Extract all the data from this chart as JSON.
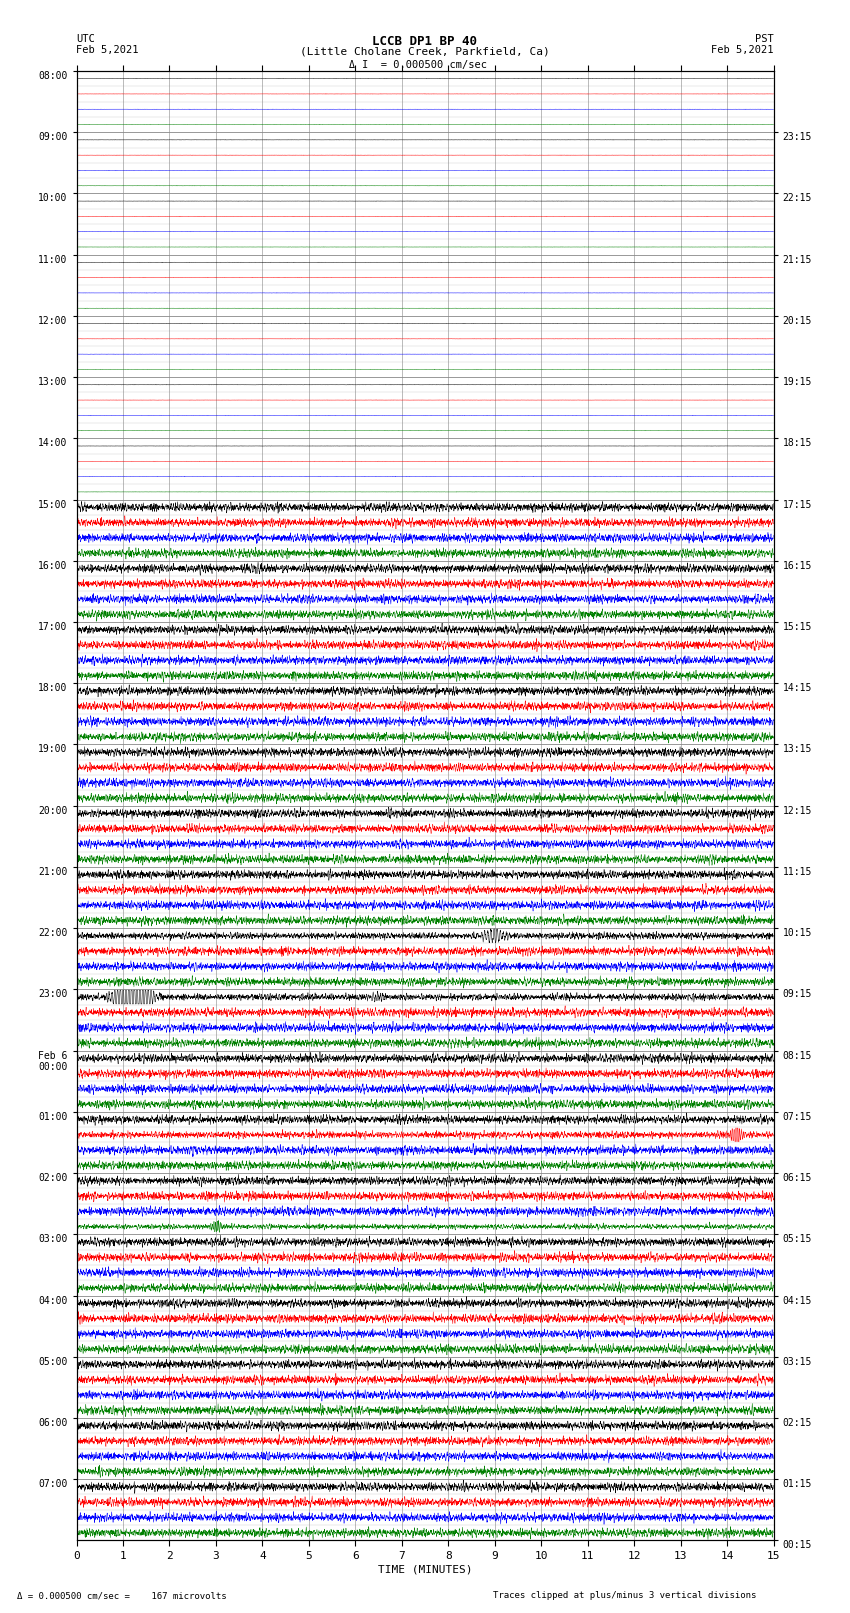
{
  "title_line1": "LCCB DP1 BP 40",
  "title_line2": "(Little Cholane Creek, Parkfield, Ca)",
  "scale_text": "I  = 0.000500 cm/sec",
  "xlabel": "TIME (MINUTES)",
  "left_times_utc": [
    "08:00",
    "",
    "09:00",
    "",
    "10:00",
    "",
    "11:00",
    "",
    "12:00",
    "",
    "13:00",
    "",
    "14:00",
    "",
    "15:00",
    "",
    "16:00",
    "",
    "17:00",
    "",
    "18:00",
    "",
    "19:00",
    "",
    "20:00",
    "",
    "21:00",
    "",
    "22:00",
    "",
    "23:00",
    "",
    "Feb 6\n00:00",
    "",
    "01:00",
    "",
    "02:00",
    "",
    "03:00",
    "",
    "04:00",
    "",
    "05:00",
    "",
    "06:00",
    "",
    "07:00",
    ""
  ],
  "right_times_pst": [
    "00:15",
    "",
    "01:15",
    "",
    "02:15",
    "",
    "03:15",
    "",
    "04:15",
    "",
    "05:15",
    "",
    "06:15",
    "",
    "07:15",
    "",
    "08:15",
    "",
    "09:15",
    "",
    "10:15",
    "",
    "11:15",
    "",
    "12:15",
    "",
    "13:15",
    "",
    "14:15",
    "",
    "15:15",
    "",
    "16:15",
    "",
    "17:15",
    "",
    "18:15",
    "",
    "19:15",
    "",
    "20:15",
    "",
    "21:15",
    "",
    "22:15",
    "",
    "23:15",
    ""
  ],
  "n_hours": 24,
  "n_minutes": 15,
  "traces_per_row": 4,
  "trace_order_colors": [
    "black",
    "red",
    "blue",
    "green"
  ],
  "quiet_hours": 7,
  "bg_color": "#ffffff",
  "grid_color": "#aaaaaa",
  "active_amplitude": 0.22,
  "quiet_amplitude": 0.003
}
